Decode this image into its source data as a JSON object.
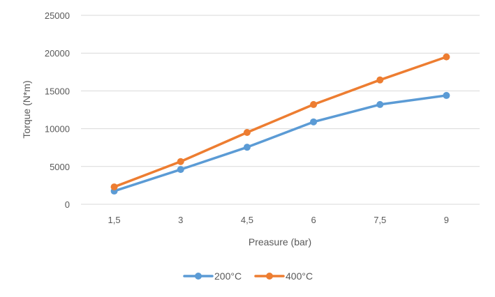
{
  "chart_data": {
    "type": "line",
    "title": "",
    "xlabel": "Preasure (bar)",
    "ylabel": "Torque (N*m)",
    "categories": [
      "1,5",
      "3",
      "4,5",
      "6",
      "7,5",
      "9"
    ],
    "ylim": [
      0,
      25000
    ],
    "yticks": [
      "0",
      "5000",
      "10000",
      "15000",
      "20000",
      "25000"
    ],
    "ytick_values": [
      0,
      5000,
      10000,
      15000,
      20000,
      25000
    ],
    "grid": true,
    "legend_position": "bottom",
    "series": [
      {
        "name": "200°C",
        "color": "#5B9BD5",
        "values": [
          1750,
          4600,
          7550,
          10900,
          13200,
          14400
        ]
      },
      {
        "name": "400°C",
        "color": "#ED7D31",
        "values": [
          2300,
          5650,
          9500,
          13200,
          16450,
          19500
        ]
      }
    ]
  }
}
